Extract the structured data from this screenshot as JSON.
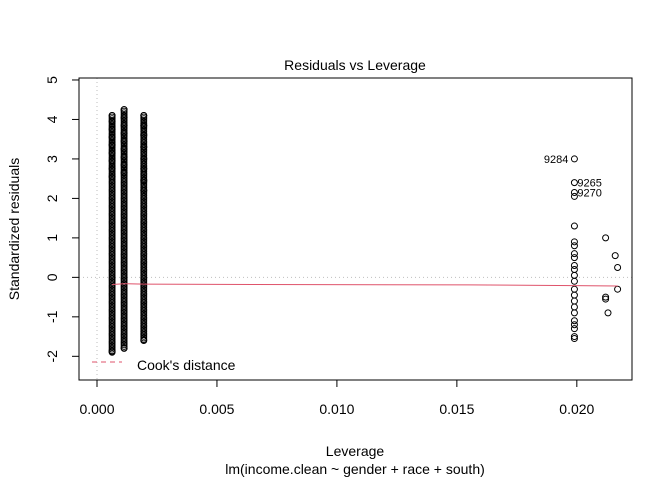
{
  "chart_data": {
    "type": "scatter",
    "title": "Residuals vs Leverage",
    "xlabel": "Leverage",
    "ylabel": "Standardized residuals",
    "subtitle": "lm(income.clean ~ gender + race + south)",
    "xlim": [
      -0.00075,
      0.0223
    ],
    "ylim": [
      -2.6,
      5.05
    ],
    "x_ticks": [
      0.0,
      0.005,
      0.01,
      0.015,
      0.02
    ],
    "x_tick_labels": [
      "0.000",
      "0.005",
      "0.010",
      "0.015",
      "0.020"
    ],
    "y_ticks": [
      -2,
      -1,
      0,
      1,
      2,
      3,
      4,
      5
    ],
    "y_tick_labels": [
      "-2",
      "-1",
      "0",
      "1",
      "2",
      "3",
      "4",
      "5"
    ],
    "point_color": "#000000",
    "smooth_color": "#DF536B",
    "reference_line_color": "#BEBEBE",
    "legend": {
      "label": "Cook's distance",
      "position": "bottom-left",
      "color": "#DF536B"
    },
    "dense_columns": [
      {
        "x": 0.00063,
        "ymin": -1.9,
        "ymax": 4.1
      },
      {
        "x": 0.00113,
        "ymin": -1.8,
        "ymax": 4.25
      },
      {
        "x": 0.00195,
        "ymin": -1.6,
        "ymax": 4.1
      }
    ],
    "points": [
      {
        "x": 0.00063,
        "y": 4.1
      },
      {
        "x": 0.00063,
        "y": 3.95
      },
      {
        "x": 0.00063,
        "y": 3.75
      },
      {
        "x": 0.00063,
        "y": 3.55
      },
      {
        "x": 0.00063,
        "y": 3.35
      },
      {
        "x": 0.00063,
        "y": 3.15
      },
      {
        "x": 0.00063,
        "y": 2.95
      },
      {
        "x": 0.00063,
        "y": 2.75
      },
      {
        "x": 0.00063,
        "y": 2.55
      },
      {
        "x": 0.00063,
        "y": -1.88
      },
      {
        "x": 0.00113,
        "y": 4.25
      },
      {
        "x": 0.00113,
        "y": 4.05
      },
      {
        "x": 0.00113,
        "y": 3.85
      },
      {
        "x": 0.00113,
        "y": 3.65
      },
      {
        "x": 0.00113,
        "y": 3.45
      },
      {
        "x": 0.00113,
        "y": 3.25
      },
      {
        "x": 0.00113,
        "y": 3.05
      },
      {
        "x": 0.00113,
        "y": 2.85
      },
      {
        "x": 0.00113,
        "y": 2.65
      },
      {
        "x": 0.00113,
        "y": -1.8
      },
      {
        "x": 0.00195,
        "y": 4.1
      },
      {
        "x": 0.00195,
        "y": 3.85
      },
      {
        "x": 0.00195,
        "y": 3.6
      },
      {
        "x": 0.00195,
        "y": 3.3
      },
      {
        "x": 0.00195,
        "y": 3.0
      },
      {
        "x": 0.00195,
        "y": 2.75
      },
      {
        "x": 0.00195,
        "y": 2.45
      },
      {
        "x": 0.00195,
        "y": 2.2
      },
      {
        "x": 0.00195,
        "y": -1.6
      },
      {
        "x": 0.0199,
        "y": 3.0
      },
      {
        "x": 0.0199,
        "y": 2.4
      },
      {
        "x": 0.0199,
        "y": 2.15
      },
      {
        "x": 0.0199,
        "y": 2.05
      },
      {
        "x": 0.0199,
        "y": 1.3
      },
      {
        "x": 0.0199,
        "y": 0.9
      },
      {
        "x": 0.0199,
        "y": 0.8
      },
      {
        "x": 0.0199,
        "y": 0.6
      },
      {
        "x": 0.0199,
        "y": 0.5
      },
      {
        "x": 0.0199,
        "y": 0.3
      },
      {
        "x": 0.0199,
        "y": 0.2
      },
      {
        "x": 0.0199,
        "y": 0.05
      },
      {
        "x": 0.0199,
        "y": -0.1
      },
      {
        "x": 0.0199,
        "y": -0.3
      },
      {
        "x": 0.0199,
        "y": -0.45
      },
      {
        "x": 0.0199,
        "y": -0.6
      },
      {
        "x": 0.0199,
        "y": -0.75
      },
      {
        "x": 0.0199,
        "y": -0.9
      },
      {
        "x": 0.0199,
        "y": -1.1
      },
      {
        "x": 0.0199,
        "y": -1.2
      },
      {
        "x": 0.0199,
        "y": -1.3
      },
      {
        "x": 0.0199,
        "y": -1.5
      },
      {
        "x": 0.0199,
        "y": -1.55
      },
      {
        "x": 0.0212,
        "y": 1.0
      },
      {
        "x": 0.0212,
        "y": -0.5
      },
      {
        "x": 0.0212,
        "y": -0.55
      },
      {
        "x": 0.0213,
        "y": -0.9
      },
      {
        "x": 0.0216,
        "y": 0.55
      },
      {
        "x": 0.0217,
        "y": 0.25
      },
      {
        "x": 0.0217,
        "y": -0.3
      }
    ],
    "labeled_points": [
      {
        "x": 0.0199,
        "y": 3.0,
        "label": "9284",
        "side": "left"
      },
      {
        "x": 0.0199,
        "y": 2.4,
        "label": "9265",
        "side": "right"
      },
      {
        "x": 0.0199,
        "y": 2.15,
        "label": "9270",
        "side": "right"
      }
    ],
    "smooth_line": [
      {
        "x": 0.00063,
        "y": -0.18
      },
      {
        "x": 0.00113,
        "y": -0.16
      },
      {
        "x": 0.00195,
        "y": -0.17
      },
      {
        "x": 0.0065,
        "y": -0.18
      },
      {
        "x": 0.0155,
        "y": -0.19
      },
      {
        "x": 0.0199,
        "y": -0.21
      },
      {
        "x": 0.0217,
        "y": -0.22
      }
    ]
  }
}
